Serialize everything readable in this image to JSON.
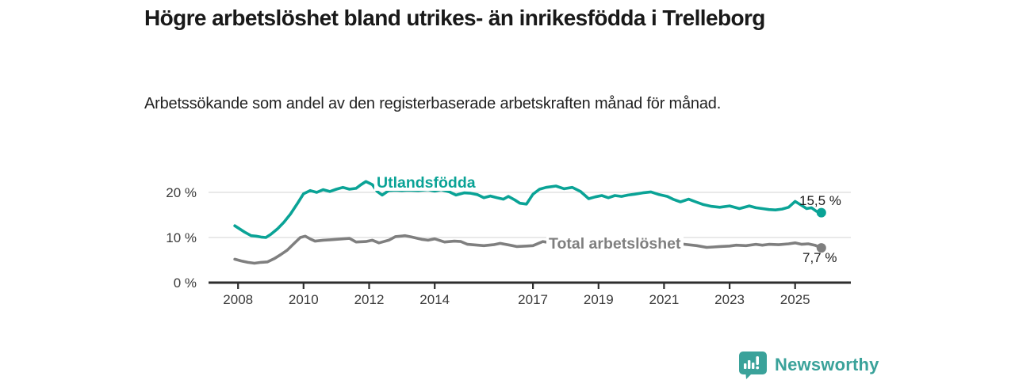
{
  "header": {
    "title": "Högre arbetslöshet bland utrikes- än inrikesfödda i Trelleborg",
    "subtitle": "Arbetssökande som andel av den registerbaserade arbetskraften månad för månad."
  },
  "chart_data": {
    "type": "line",
    "title": "Högre arbetslöshet bland utrikes- än inrikesfödda i Trelleborg",
    "subtitle": "Arbetssökande som andel av den registerbaserade arbetskraften månad för månad.",
    "xlabel": "",
    "ylabel": "",
    "grid": true,
    "xlim": [
      2007.1,
      2026.7
    ],
    "ylim": [
      0,
      24
    ],
    "x_ticks": [
      2008,
      2010,
      2012,
      2014,
      2017,
      2019,
      2021,
      2023,
      2025
    ],
    "y_ticks": [
      {
        "v": 0,
        "label": "0 %"
      },
      {
        "v": 10,
        "label": "10 %"
      },
      {
        "v": 20,
        "label": "20 %"
      }
    ],
    "colors": {
      "grid": "#dcdcdc",
      "axis": "#2e2e2e",
      "tick_text": "#3a3a3a"
    },
    "series": [
      {
        "name": "Utlandsfödda",
        "color": "#0aa396",
        "end_value": 15.5,
        "end_label": "15,5 %",
        "points": [
          [
            2007.9,
            12.6
          ],
          [
            2008.05,
            11.9
          ],
          [
            2008.2,
            11.2
          ],
          [
            2008.4,
            10.4
          ],
          [
            2008.55,
            10.3
          ],
          [
            2008.7,
            10.1
          ],
          [
            2008.85,
            10.0
          ],
          [
            2009.0,
            10.7
          ],
          [
            2009.2,
            11.9
          ],
          [
            2009.4,
            13.4
          ],
          [
            2009.6,
            15.2
          ],
          [
            2009.8,
            17.4
          ],
          [
            2010.0,
            19.7
          ],
          [
            2010.2,
            20.4
          ],
          [
            2010.4,
            20.0
          ],
          [
            2010.6,
            20.6
          ],
          [
            2010.8,
            20.2
          ],
          [
            2011.0,
            20.7
          ],
          [
            2011.2,
            21.1
          ],
          [
            2011.4,
            20.7
          ],
          [
            2011.6,
            20.9
          ],
          [
            2011.75,
            21.7
          ],
          [
            2011.9,
            22.4
          ],
          [
            2012.1,
            21.7
          ],
          [
            2012.25,
            20.2
          ],
          [
            2012.4,
            19.4
          ],
          [
            2012.6,
            20.4
          ],
          [
            2012.8,
            20.5
          ],
          [
            2013.0,
            20.4
          ],
          [
            2013.2,
            20.5
          ],
          [
            2013.5,
            20.4
          ],
          [
            2013.8,
            20.6
          ],
          [
            2014.0,
            20.3
          ],
          [
            2014.2,
            20.6
          ],
          [
            2014.45,
            20.1
          ],
          [
            2014.65,
            19.4
          ],
          [
            2014.9,
            19.9
          ],
          [
            2015.1,
            19.8
          ],
          [
            2015.3,
            19.5
          ],
          [
            2015.5,
            18.8
          ],
          [
            2015.7,
            19.2
          ],
          [
            2015.9,
            18.8
          ],
          [
            2016.1,
            18.5
          ],
          [
            2016.25,
            19.1
          ],
          [
            2016.45,
            18.3
          ],
          [
            2016.6,
            17.6
          ],
          [
            2016.8,
            17.4
          ],
          [
            2017.0,
            19.6
          ],
          [
            2017.2,
            20.7
          ],
          [
            2017.4,
            21.1
          ],
          [
            2017.7,
            21.4
          ],
          [
            2017.95,
            20.8
          ],
          [
            2018.2,
            21.1
          ],
          [
            2018.45,
            20.2
          ],
          [
            2018.7,
            18.6
          ],
          [
            2018.9,
            19.0
          ],
          [
            2019.1,
            19.3
          ],
          [
            2019.3,
            18.8
          ],
          [
            2019.5,
            19.3
          ],
          [
            2019.7,
            19.1
          ],
          [
            2019.9,
            19.4
          ],
          [
            2020.1,
            19.6
          ],
          [
            2020.35,
            19.9
          ],
          [
            2020.6,
            20.1
          ],
          [
            2020.85,
            19.5
          ],
          [
            2021.1,
            19.1
          ],
          [
            2021.3,
            18.4
          ],
          [
            2021.5,
            17.9
          ],
          [
            2021.75,
            18.5
          ],
          [
            2022.0,
            17.8
          ],
          [
            2022.2,
            17.3
          ],
          [
            2022.45,
            16.9
          ],
          [
            2022.7,
            16.7
          ],
          [
            2023.0,
            17.0
          ],
          [
            2023.3,
            16.4
          ],
          [
            2023.6,
            17.0
          ],
          [
            2023.8,
            16.6
          ],
          [
            2024.0,
            16.4
          ],
          [
            2024.2,
            16.2
          ],
          [
            2024.4,
            16.1
          ],
          [
            2024.6,
            16.3
          ],
          [
            2024.8,
            16.7
          ],
          [
            2025.0,
            18.0
          ],
          [
            2025.2,
            17.1
          ],
          [
            2025.35,
            16.4
          ],
          [
            2025.5,
            16.6
          ],
          [
            2025.65,
            15.8
          ],
          [
            2025.8,
            15.5
          ]
        ]
      },
      {
        "name": "Total arbetslöshet",
        "color": "#7f7f7f",
        "end_value": 7.7,
        "end_label": "7,7 %",
        "points": [
          [
            2007.9,
            5.2
          ],
          [
            2008.1,
            4.8
          ],
          [
            2008.3,
            4.5
          ],
          [
            2008.5,
            4.3
          ],
          [
            2008.7,
            4.5
          ],
          [
            2008.9,
            4.6
          ],
          [
            2009.1,
            5.3
          ],
          [
            2009.3,
            6.2
          ],
          [
            2009.5,
            7.2
          ],
          [
            2009.7,
            8.6
          ],
          [
            2009.9,
            10.0
          ],
          [
            2010.05,
            10.3
          ],
          [
            2010.2,
            9.7
          ],
          [
            2010.35,
            9.2
          ],
          [
            2010.6,
            9.4
          ],
          [
            2010.8,
            9.5
          ],
          [
            2011.0,
            9.6
          ],
          [
            2011.2,
            9.7
          ],
          [
            2011.4,
            9.8
          ],
          [
            2011.6,
            9.0
          ],
          [
            2011.9,
            9.1
          ],
          [
            2012.1,
            9.4
          ],
          [
            2012.3,
            8.8
          ],
          [
            2012.6,
            9.4
          ],
          [
            2012.8,
            10.2
          ],
          [
            2013.1,
            10.4
          ],
          [
            2013.3,
            10.1
          ],
          [
            2013.6,
            9.6
          ],
          [
            2013.8,
            9.4
          ],
          [
            2014.0,
            9.7
          ],
          [
            2014.3,
            9.0
          ],
          [
            2014.6,
            9.2
          ],
          [
            2014.8,
            9.1
          ],
          [
            2015.0,
            8.5
          ],
          [
            2015.5,
            8.2
          ],
          [
            2015.8,
            8.4
          ],
          [
            2016.0,
            8.7
          ],
          [
            2016.3,
            8.3
          ],
          [
            2016.5,
            8.0
          ],
          [
            2016.8,
            8.1
          ],
          [
            2017.0,
            8.2
          ],
          [
            2017.3,
            9.1
          ],
          [
            2017.55,
            8.8
          ],
          [
            2018.0,
            9.0
          ],
          [
            2018.5,
            8.8
          ],
          [
            2019.0,
            8.6
          ],
          [
            2019.5,
            8.5
          ],
          [
            2020.0,
            9.3
          ],
          [
            2020.5,
            9.6
          ],
          [
            2021.0,
            9.2
          ],
          [
            2021.5,
            8.6
          ],
          [
            2022.0,
            8.2
          ],
          [
            2022.3,
            7.8
          ],
          [
            2022.5,
            7.9
          ],
          [
            2022.7,
            8.0
          ],
          [
            2023.0,
            8.1
          ],
          [
            2023.2,
            8.3
          ],
          [
            2023.5,
            8.2
          ],
          [
            2023.8,
            8.5
          ],
          [
            2024.0,
            8.3
          ],
          [
            2024.2,
            8.5
          ],
          [
            2024.5,
            8.4
          ],
          [
            2024.8,
            8.6
          ],
          [
            2025.0,
            8.8
          ],
          [
            2025.2,
            8.5
          ],
          [
            2025.4,
            8.6
          ],
          [
            2025.6,
            8.3
          ],
          [
            2025.8,
            7.7
          ]
        ]
      }
    ]
  },
  "branding": {
    "logo_text": "Newsworthy",
    "logo_color": "#3aa29a",
    "icon": "newsworthy-speech-bubble-bar-chart-icon"
  }
}
